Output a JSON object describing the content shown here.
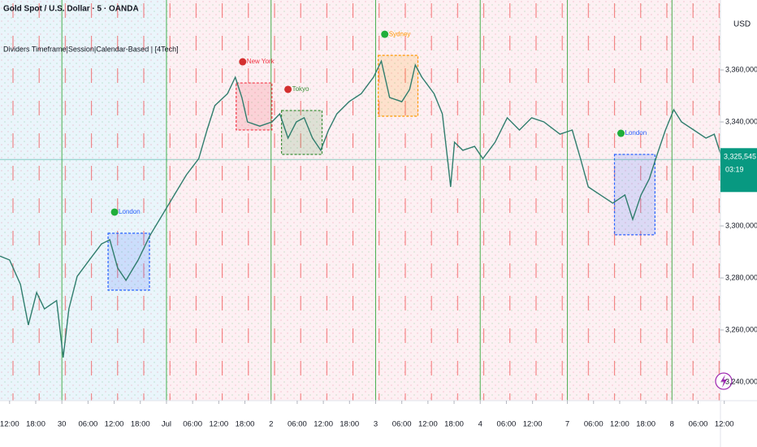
{
  "chart_data": {
    "type": "line",
    "title": "Gold Spot / U.S. Dollar · 5 · OANDA",
    "subtitle": "Dividers Timeframe|Session|Calendar-Based | [4Tech]",
    "currency": "USD",
    "x": [
      -2.2,
      0,
      2.5,
      4.3,
      6.2,
      8.0,
      10.8,
      12.3,
      13.6,
      15.5,
      18.3,
      21.1,
      23.0,
      24.8,
      26.7,
      29.5,
      32.2,
      35.0,
      37.8,
      40.6,
      43.4,
      45.3,
      47.1,
      50.0,
      51.8,
      53.3,
      54.6,
      57.4,
      60.2,
      62.0,
      63.9,
      65.8,
      67.6,
      69.5,
      71.4,
      73.2,
      75.1,
      77.9,
      80.7,
      83.5,
      85.3,
      87.2,
      90.0,
      91.8,
      93.1,
      94.6,
      97.4,
      99.3,
      100.6,
      101.2,
      102.1,
      104.0,
      106.7,
      108.6,
      111.4,
      114.2,
      117.0,
      119.8,
      122.6,
      126.3,
      129.1,
      131.0,
      132.8,
      135.6,
      138.4,
      141.2,
      143.0,
      144.9,
      146.8,
      148.6,
      150.5,
      152.4,
      154.2,
      157.0,
      159.8,
      161.7,
      163.5
    ],
    "series": [
      {
        "name": "Gold Spot / U.S. Dollar",
        "color": "#2f7d6d",
        "values": [
          3288400,
          3286900,
          3277500,
          3261900,
          3274400,
          3268100,
          3271300,
          3249400,
          3268100,
          3280600,
          3286900,
          3293100,
          3294700,
          3283800,
          3279100,
          3286900,
          3296300,
          3304100,
          3311900,
          3319700,
          3325900,
          3336900,
          3346300,
          3350900,
          3357200,
          3349400,
          3340000,
          3338400,
          3340000,
          3343100,
          3333800,
          3340000,
          3341600,
          3333800,
          3329100,
          3336900,
          3343100,
          3347800,
          3350900,
          3357200,
          3363400,
          3349400,
          3347800,
          3352500,
          3361900,
          3357200,
          3350900,
          3343100,
          3324400,
          3315000,
          3332200,
          3329100,
          3330600,
          3325900,
          3332200,
          3341600,
          3336900,
          3341600,
          3340000,
          3335300,
          3336900,
          3325900,
          3315000,
          3311900,
          3308800,
          3311900,
          3302500,
          3311900,
          3318100,
          3327500,
          3336900,
          3344700,
          3340000,
          3336900,
          3333800,
          3335300,
          3325900
        ]
      }
    ],
    "xlim": [
      -2.2,
      164.8
    ],
    "ylim": [
      3232800,
      3386900
    ],
    "xticks": [
      {
        "value": 0,
        "label": "12:00"
      },
      {
        "value": 6,
        "label": "18:00"
      },
      {
        "value": 12,
        "label": "30"
      },
      {
        "value": 18,
        "label": "06:00"
      },
      {
        "value": 24,
        "label": "12:00"
      },
      {
        "value": 30,
        "label": "18:00"
      },
      {
        "value": 36,
        "label": "Jul"
      },
      {
        "value": 42,
        "label": "06:00"
      },
      {
        "value": 48,
        "label": "12:00"
      },
      {
        "value": 54,
        "label": "18:00"
      },
      {
        "value": 60,
        "label": "2"
      },
      {
        "value": 66,
        "label": "06:00"
      },
      {
        "value": 72,
        "label": "12:00"
      },
      {
        "value": 78,
        "label": "18:00"
      },
      {
        "value": 84,
        "label": "3"
      },
      {
        "value": 90,
        "label": "06:00"
      },
      {
        "value": 96,
        "label": "12:00"
      },
      {
        "value": 102,
        "label": "18:00"
      },
      {
        "value": 108,
        "label": "4"
      },
      {
        "value": 114,
        "label": "06:00"
      },
      {
        "value": 120,
        "label": "12:00"
      },
      {
        "value": 128,
        "label": "7"
      },
      {
        "value": 134,
        "label": "06:00"
      },
      {
        "value": 140,
        "label": "12:00"
      },
      {
        "value": 146,
        "label": "18:00"
      },
      {
        "value": 152,
        "label": "8"
      },
      {
        "value": 158,
        "label": "06:00"
      },
      {
        "value": 164,
        "label": "12:00"
      }
    ],
    "day_boundaries": [
      12,
      36,
      60,
      84,
      108,
      128,
      152
    ],
    "yticks": [
      {
        "value": 3360000,
        "label": "3,360,000"
      },
      {
        "value": 3340000,
        "label": "3,340,000"
      },
      {
        "value": 3300000,
        "label": "3,300,000"
      },
      {
        "value": 3280000,
        "label": "3,280,000"
      },
      {
        "value": 3260000,
        "label": "3,260,000"
      },
      {
        "value": 3240000,
        "label": "3,240,000"
      }
    ],
    "price_label": {
      "value": 3325545,
      "label": "3,325,545"
    },
    "countdown": "03:19",
    "sessions": [
      {
        "label": "London",
        "x": [
          22.6,
          32.1
        ],
        "high": 3297200,
        "low": 3275300,
        "color": "#2962ff",
        "dot_color": "#1fae3a"
      },
      {
        "label": "New York",
        "x": [
          52.0,
          60.2
        ],
        "high": 3355000,
        "low": 3336900,
        "color": "#f23645",
        "dot_color": "#d32f2f"
      },
      {
        "label": "Tokyo",
        "x": [
          62.4,
          71.7
        ],
        "high": 3344400,
        "low": 3327500,
        "color": "#3f8f3a",
        "dot_color": "#d32f2f"
      },
      {
        "label": "Sydney",
        "x": [
          84.6,
          93.7
        ],
        "high": 3365600,
        "low": 3342200,
        "color": "#ff9800",
        "dot_color": "#1fae3a"
      },
      {
        "label": "London",
        "x": [
          138.8,
          148.1
        ],
        "high": 3327500,
        "low": 3296600,
        "color": "#2962ff",
        "dot_color": "#1fae3a"
      }
    ]
  }
}
